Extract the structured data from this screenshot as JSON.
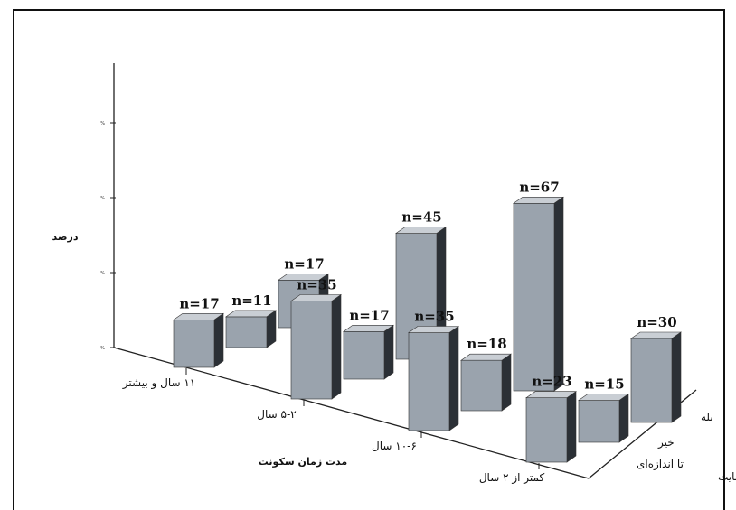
{
  "chart_data": {
    "type": "bar",
    "subtype": "3d-clustered",
    "ylabel": "درصد",
    "xlabel": "مدت زمان سکونت",
    "zlabel": "میزان رضایت",
    "categories": [
      "۱۱ سال و بیشتر",
      "۵-۲ سال",
      "۱۰-۶ سال",
      "کمتر از ۲ سال"
    ],
    "series_labels": [
      "تا اندازه‌ای",
      "خیر",
      "بله"
    ],
    "y_ticks": [
      "%",
      "%",
      "%",
      "%"
    ],
    "bars": [
      {
        "category": "۱۱ سال و بیشتر",
        "series": "تا اندازه‌ای",
        "label": "n=17",
        "value": 17
      },
      {
        "category": "۱۱ سال و بیشتر",
        "series": "خیر",
        "label": "n=11",
        "value": 11
      },
      {
        "category": "۱۱ سال و بیشتر",
        "series": "بله",
        "label": "n=17",
        "value": 17
      },
      {
        "category": "۵-۲ سال",
        "series": "تا اندازه‌ای",
        "label": "n=35",
        "value": 35
      },
      {
        "category": "۵-۲ سال",
        "series": "خیر",
        "label": "n=17",
        "value": 17
      },
      {
        "category": "۵-۲ سال",
        "series": "بله",
        "label": "n=45",
        "value": 45
      },
      {
        "category": "۱۰-۶ سال",
        "series": "تا اندازه‌ای",
        "label": "n=35",
        "value": 35
      },
      {
        "category": "۱۰-۶ سال",
        "series": "خیر",
        "label": "n=18",
        "value": 18
      },
      {
        "category": "۱۰-۶ سال",
        "series": "بله",
        "label": "n=67",
        "value": 67
      },
      {
        "category": "کمتر از ۲ سال",
        "series": "تا اندازه‌ای",
        "label": "n=23",
        "value": 23
      },
      {
        "category": "کمتر از ۲ سال",
        "series": "خیر",
        "label": "n=15",
        "value": 15
      },
      {
        "category": "کمتر از ۲ سال",
        "series": "بله",
        "label": "n=30",
        "value": 30
      }
    ],
    "grid": false,
    "colors": {
      "front": "#9aa3ad",
      "side": "#2b3036",
      "top": "#c9ced4",
      "outline": "#333333"
    }
  }
}
